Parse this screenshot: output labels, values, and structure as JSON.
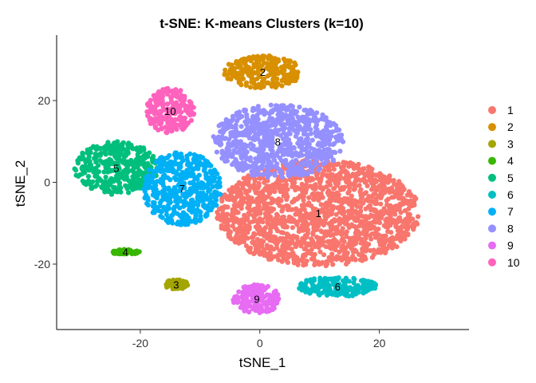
{
  "chart_data": {
    "type": "scatter",
    "title": "t-SNE: K-means Clusters (k=10)",
    "xlabel": "tSNE_1",
    "ylabel": "tSNE_2",
    "xlim": [
      -34,
      35
    ],
    "ylim": [
      -36,
      36
    ],
    "xticks": [
      "-20",
      "0",
      "20"
    ],
    "yticks": [
      "20",
      "0",
      "-20"
    ],
    "xtick_values": [
      -20,
      0,
      20
    ],
    "ytick_values": [
      20,
      0,
      -20
    ],
    "grid": false,
    "legend_position": "right",
    "clusters": [
      {
        "name": "1",
        "color": "#F8766D",
        "cx": 9.8,
        "cy": -7.5,
        "rx": 17,
        "ry": 13
      },
      {
        "name": "2",
        "color": "#D89000",
        "cx": 0.5,
        "cy": 27,
        "rx": 6.5,
        "ry": 4
      },
      {
        "name": "3",
        "color": "#A3A500",
        "cx": -14,
        "cy": -25,
        "rx": 2,
        "ry": 1.2
      },
      {
        "name": "4",
        "color": "#39B600",
        "cx": -22.5,
        "cy": -17,
        "rx": 2.5,
        "ry": 0.6
      },
      {
        "name": "5",
        "color": "#00BF7D",
        "cx": -24,
        "cy": 3.5,
        "rx": 7,
        "ry": 6.5
      },
      {
        "name": "6",
        "color": "#00BFC4",
        "cx": 13,
        "cy": -25.5,
        "rx": 6.5,
        "ry": 2.5
      },
      {
        "name": "7",
        "color": "#00B0F6",
        "cx": -13,
        "cy": -1.5,
        "rx": 6.5,
        "ry": 9
      },
      {
        "name": "8",
        "color": "#9590FF",
        "cx": 3,
        "cy": 10,
        "rx": 11,
        "ry": 9
      },
      {
        "name": "9",
        "color": "#E76BF3",
        "cx": -0.5,
        "cy": -28.5,
        "rx": 4,
        "ry": 3.5
      },
      {
        "name": "10",
        "color": "#FF62BC",
        "cx": -15,
        "cy": 17.5,
        "rx": 4,
        "ry": 5.5
      }
    ],
    "legend": [
      "1",
      "2",
      "3",
      "4",
      "5",
      "6",
      "7",
      "8",
      "9",
      "10"
    ]
  }
}
